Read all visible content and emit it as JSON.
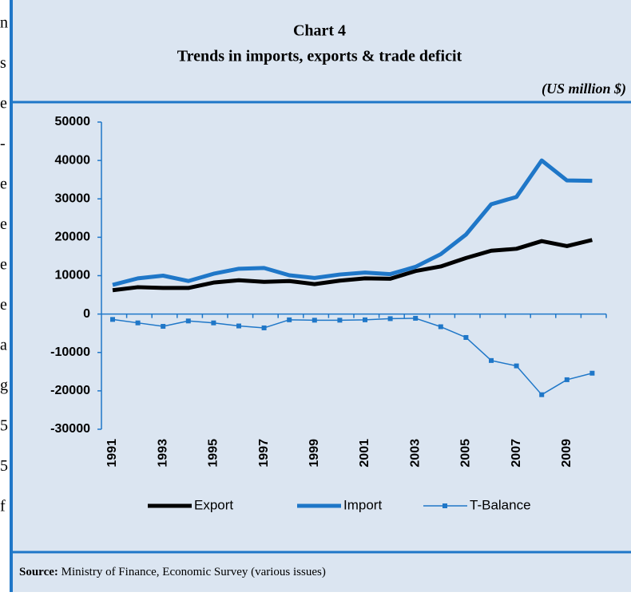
{
  "margin_fragments": [
    "n",
    "s",
    "e",
    "-",
    "e",
    "e",
    "e",
    "e",
    "a",
    "g",
    "5",
    "5",
    "f"
  ],
  "chart_data": {
    "type": "line",
    "title": "Chart 4",
    "subtitle": "Trends in imports, exports & trade deficit",
    "unit_note": "(US million $)",
    "categories": [
      "1991",
      null,
      "1993",
      null,
      "1995",
      null,
      "1997",
      null,
      "1999",
      null,
      "2001",
      null,
      "2003",
      null,
      "2005",
      null,
      "2007",
      null,
      "2009",
      null
    ],
    "series": [
      {
        "name": "Export",
        "color": "#000000",
        "values": [
          6200,
          7000,
          6800,
          6800,
          8200,
          8800,
          8400,
          8600,
          7800,
          8700,
          9300,
          9200,
          11200,
          12400,
          14600,
          16500,
          17000,
          19000,
          17700,
          19300
        ]
      },
      {
        "name": "Import",
        "color": "#1f77c8",
        "values": [
          7600,
          9300,
          10000,
          8600,
          10500,
          11800,
          12000,
          10100,
          9400,
          10300,
          10800,
          10400,
          12300,
          15600,
          20700,
          28600,
          30500,
          40000,
          34800,
          34700
        ]
      },
      {
        "name": "T-Balance",
        "color": "#1f77c8",
        "values": [
          -1400,
          -2300,
          -3200,
          -1800,
          -2300,
          -3100,
          -3600,
          -1500,
          -1600,
          -1600,
          -1500,
          -1200,
          -1100,
          -3300,
          -6100,
          -12100,
          -13500,
          -21000,
          -17100,
          -15400
        ]
      }
    ],
    "ylim": [
      -30000,
      50000
    ],
    "yticks": [
      -30000,
      -20000,
      -10000,
      0,
      10000,
      20000,
      30000,
      40000,
      50000
    ],
    "legend": "bottom",
    "source_label": "Source:",
    "source_text": "Ministry of Finance, Economic Survey (various issues)"
  }
}
